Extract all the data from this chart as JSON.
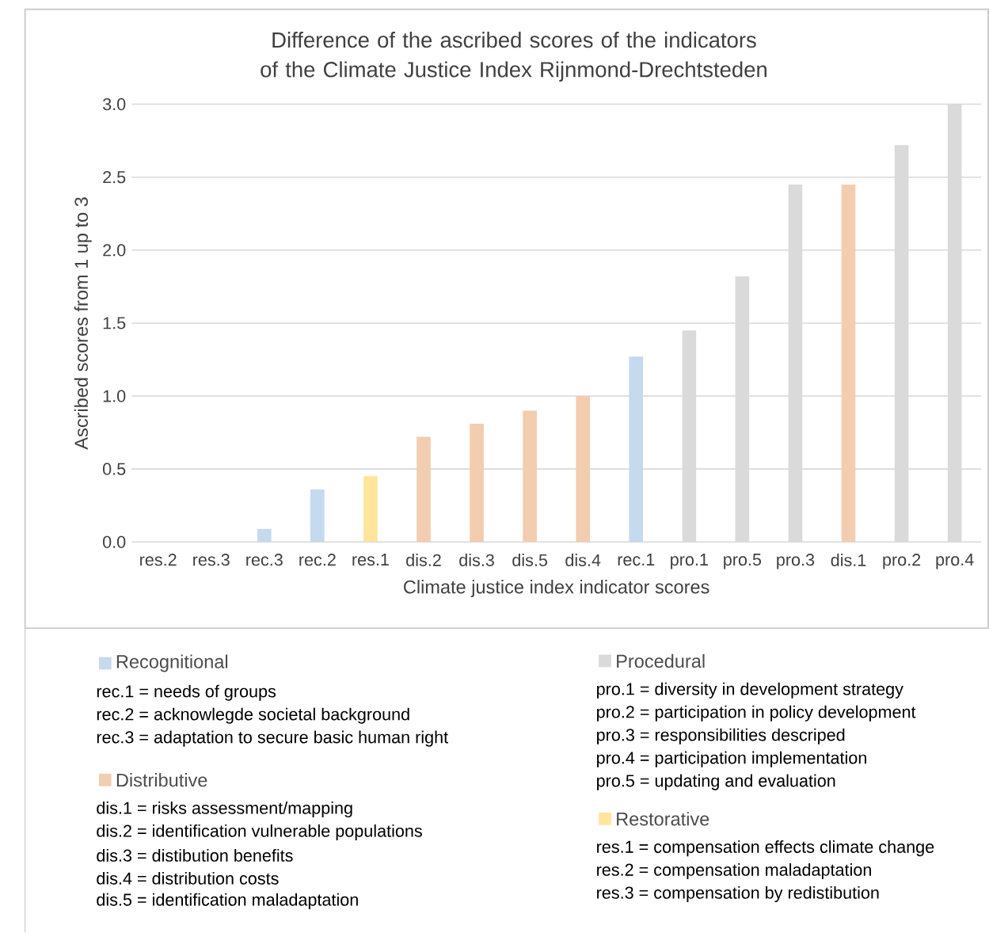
{
  "chart_data": {
    "type": "bar",
    "title": "Difference of the ascribed scores of the indicators of the Climate Justice Index Rijnmond-Drechtsteden",
    "xlabel": "Climate justice index indicator scores",
    "ylabel": "Ascribed scores from 1 up to 3",
    "categories": [
      "res.2",
      "res.3",
      "rec.3",
      "rec.2",
      "res.1",
      "dis.2",
      "dis.3",
      "dis.5",
      "dis.4",
      "rec.1",
      "pro.1",
      "pro.5",
      "pro.3",
      "dis.1",
      "pro.2",
      "pro.4"
    ],
    "series": [
      {
        "name": "Recognitional",
        "color": "#c5d9ef",
        "values": [
          null,
          null,
          0.09,
          0.36,
          null,
          null,
          null,
          null,
          null,
          1.27,
          null,
          null,
          null,
          null,
          null,
          null
        ]
      },
      {
        "name": "Distributive",
        "color": "#f3cdb0",
        "values": [
          null,
          null,
          null,
          null,
          null,
          0.72,
          0.81,
          0.9,
          1.0,
          null,
          null,
          null,
          null,
          2.45,
          null,
          null
        ]
      },
      {
        "name": "Procedural",
        "color": "#dadada",
        "values": [
          null,
          null,
          null,
          null,
          null,
          null,
          null,
          null,
          null,
          null,
          1.45,
          1.82,
          2.45,
          null,
          2.72,
          3.0
        ]
      },
      {
        "name": "Restorative",
        "color": "#fde59c",
        "values": [
          0,
          0,
          null,
          null,
          0.45,
          null,
          null,
          null,
          null,
          null,
          null,
          null,
          null,
          null,
          null,
          null
        ]
      }
    ],
    "ylim": [
      0,
      3
    ],
    "yticks": [
      {
        "value": 0,
        "label": "0.0"
      },
      {
        "value": 0.5,
        "label": "0.5"
      },
      {
        "value": 1,
        "label": "1.0"
      },
      {
        "value": 1.5,
        "label": "1.5"
      },
      {
        "value": 2,
        "label": "2.0"
      },
      {
        "value": 2.5,
        "label": "2.5"
      },
      {
        "value": 3,
        "label": "3.0"
      }
    ],
    "grid": "y",
    "legend": "bottom",
    "annotations": [
      "rec.1 = needs of groups",
      "rec.2 = acknowlegde societal background",
      "rec.3 = adaptation to secure basic human right",
      "dis.1 = risks assessment/mapping",
      "dis.2 = identification vulnerable populations",
      "dis.3 = distibution benefits",
      "dis.4 = distribution costs",
      "dis.5 = identification maladaptation",
      "pro.1 = diversity in development strategy",
      "pro.2 = participation in policy development",
      "pro.3 = responsibilities descriped",
      "pro.4 = participation implementation",
      "pro.5 = updating and evaluation",
      "res.1 = compensation effects climate change",
      "res.2 = compensation maladaptation",
      "res.3 = compensation by redistibution"
    ]
  }
}
